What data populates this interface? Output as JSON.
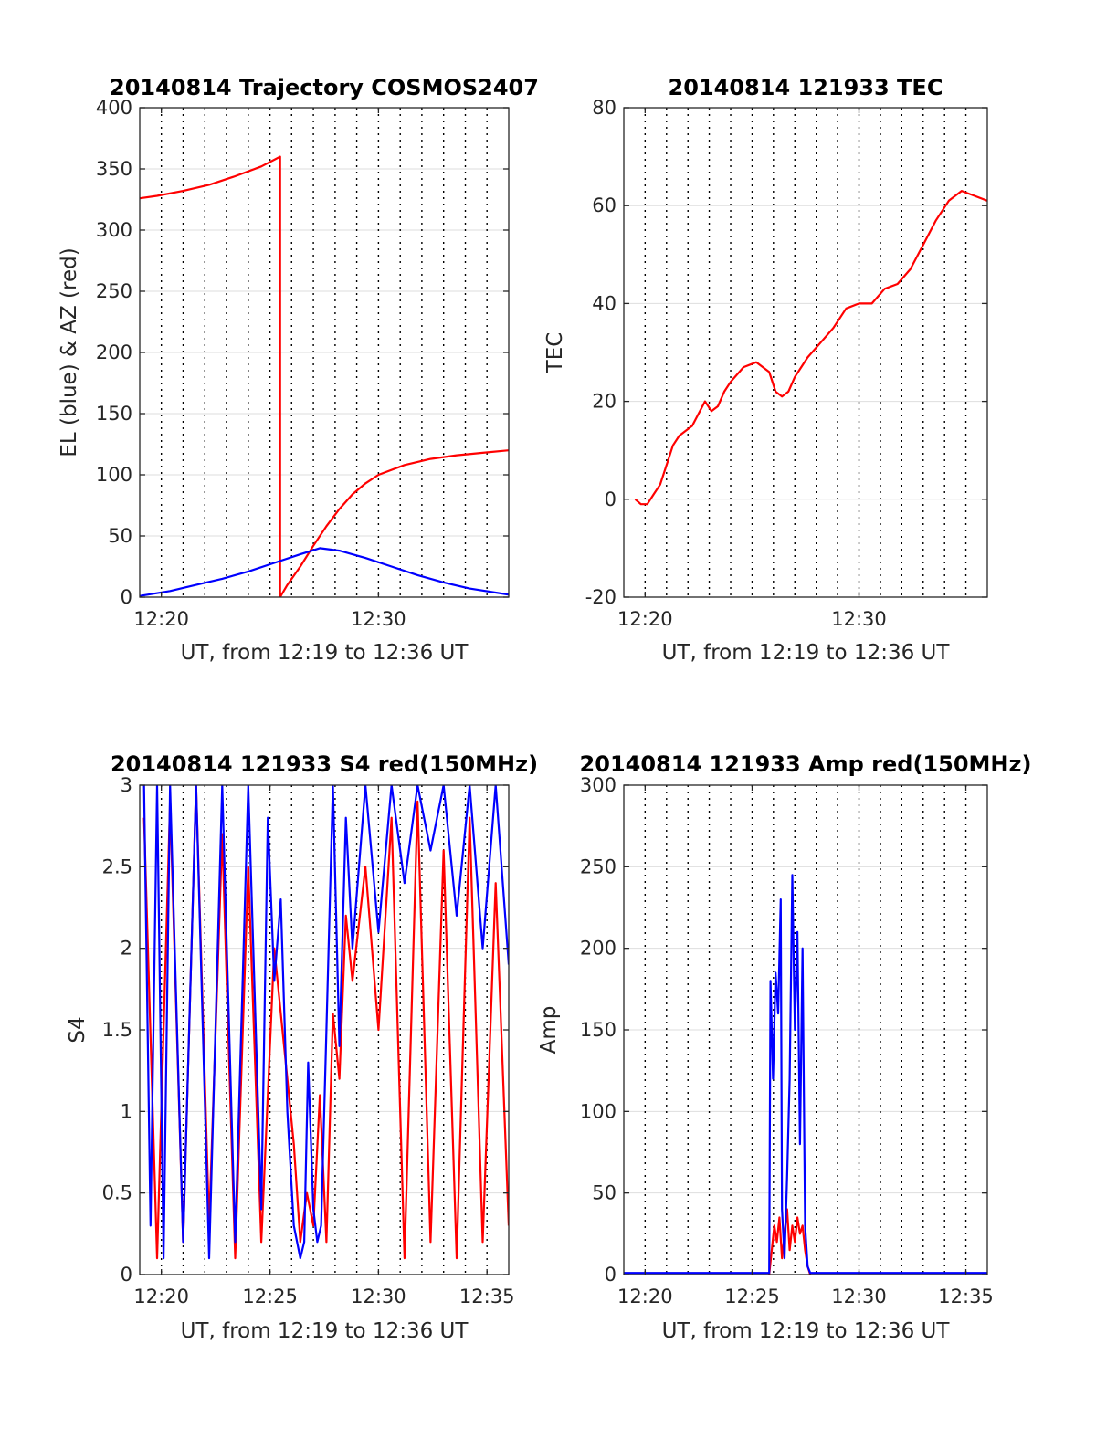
{
  "figure_colors": {
    "background": "#ffffff",
    "axes": "#262626",
    "grid_h": "#dedede",
    "grid_v": "#000000",
    "red": "#ff0000",
    "blue": "#0000ff"
  },
  "chart_data": [
    {
      "id": "traj",
      "type": "line",
      "title": "20140814 Trajectory COSMOS2407",
      "xlabel": "UT, from 12:19 to 12:36 UT",
      "ylabel": "EL (blue) & AZ (red)",
      "xlim": [
        12.3167,
        12.6
      ],
      "ylim": [
        0,
        400
      ],
      "xticks": [
        12.3333,
        12.5
      ],
      "xtick_labels": [
        "12:20",
        "12:30"
      ],
      "yticks": [
        0,
        50,
        100,
        150,
        200,
        250,
        300,
        350,
        400
      ],
      "ytick_labels": [
        "0",
        "50",
        "100",
        "150",
        "200",
        "250",
        "300",
        "350",
        "400"
      ],
      "vgrid_minutes": [
        12.3333,
        12.35,
        12.3667,
        12.3833,
        12.4,
        12.4167,
        12.4333,
        12.45,
        12.4667,
        12.4833,
        12.5,
        12.5167,
        12.5333,
        12.55,
        12.5667,
        12.5833
      ],
      "series": [
        {
          "color": "#ff0000",
          "x": [
            12.3167,
            12.33,
            12.35,
            12.37,
            12.39,
            12.41,
            12.4245,
            12.4245,
            12.4245,
            12.43,
            12.44,
            12.45,
            12.46,
            12.47,
            12.48,
            12.49,
            12.5,
            12.52,
            12.54,
            12.56,
            12.58,
            12.6
          ],
          "values": [
            326,
            328,
            332,
            337,
            344,
            352,
            360,
            200,
            0,
            10,
            25,
            42,
            58,
            72,
            84,
            93,
            100,
            108,
            113,
            116,
            118,
            120
          ]
        },
        {
          "color": "#0000ff",
          "x": [
            12.3167,
            12.34,
            12.36,
            12.38,
            12.4,
            12.42,
            12.44,
            12.455,
            12.47,
            12.49,
            12.51,
            12.53,
            12.55,
            12.57,
            12.6
          ],
          "values": [
            1,
            5,
            10,
            15,
            21,
            28,
            35,
            40,
            38,
            32,
            25,
            18,
            12,
            7,
            2
          ]
        }
      ]
    },
    {
      "id": "tec",
      "type": "line",
      "title": "20140814 121933 TEC",
      "xlabel": "UT, from 12:19 to 12:36 UT",
      "ylabel": "TEC",
      "xlim": [
        12.3167,
        12.6
      ],
      "ylim": [
        -20,
        80
      ],
      "xticks": [
        12.3333,
        12.5
      ],
      "xtick_labels": [
        "12:20",
        "12:30"
      ],
      "yticks": [
        -20,
        0,
        20,
        40,
        60,
        80
      ],
      "ytick_labels": [
        "-20",
        "0",
        "20",
        "40",
        "60",
        "80"
      ],
      "vgrid_minutes": [
        12.3333,
        12.35,
        12.3667,
        12.3833,
        12.4,
        12.4167,
        12.4333,
        12.45,
        12.4667,
        12.4833,
        12.5,
        12.5167,
        12.5333,
        12.55,
        12.5667,
        12.5833
      ],
      "series": [
        {
          "color": "#ff0000",
          "x": [
            12.3256,
            12.33,
            12.335,
            12.34,
            12.345,
            12.35,
            12.355,
            12.36,
            12.37,
            12.38,
            12.385,
            12.39,
            12.395,
            12.4,
            12.41,
            12.42,
            12.43,
            12.435,
            12.44,
            12.445,
            12.45,
            12.455,
            12.46,
            12.47,
            12.48,
            12.49,
            12.5,
            12.51,
            12.52,
            12.53,
            12.54,
            12.55,
            12.56,
            12.57,
            12.58,
            12.59,
            12.6
          ],
          "values": [
            0,
            -1,
            -1,
            1,
            3,
            7,
            11,
            13,
            15,
            20,
            18,
            19,
            22,
            24,
            27,
            28,
            26,
            22,
            21,
            22,
            25,
            27,
            29,
            32,
            35,
            39,
            40,
            40,
            43,
            44,
            47,
            52,
            57,
            61,
            63,
            62,
            61
          ]
        }
      ]
    },
    {
      "id": "s4",
      "type": "line",
      "title": "20140814 121933 S4 red(150MHz)",
      "xlabel": "UT, from 12:19 to 12:36 UT",
      "ylabel": "S4",
      "xlim": [
        12.3167,
        12.6
      ],
      "ylim": [
        0,
        3
      ],
      "xticks": [
        12.3333,
        12.4167,
        12.5,
        12.5833
      ],
      "xtick_labels": [
        "12:20",
        "12:25",
        "12:30",
        "12:35"
      ],
      "yticks": [
        0,
        0.5,
        1,
        1.5,
        2,
        2.5,
        3
      ],
      "ytick_labels": [
        "0",
        "0.5",
        "1",
        "1.5",
        "2",
        "2.5",
        "3"
      ],
      "vgrid_minutes": [
        12.3333,
        12.35,
        12.3667,
        12.3833,
        12.4,
        12.4167,
        12.4333,
        12.45,
        12.4667,
        12.4833,
        12.5,
        12.5167,
        12.5333,
        12.55,
        12.5667,
        12.5833
      ],
      "series": [
        {
          "color": "#ff0000",
          "x": [
            12.32,
            12.33,
            12.34,
            12.35,
            12.36,
            12.37,
            12.38,
            12.39,
            12.4,
            12.41,
            12.42,
            12.43,
            12.435,
            12.44,
            12.445,
            12.45,
            12.455,
            12.46,
            12.465,
            12.47,
            12.475,
            12.48,
            12.49,
            12.5,
            12.51,
            12.52,
            12.53,
            12.54,
            12.55,
            12.56,
            12.57,
            12.58,
            12.59,
            12.6
          ],
          "values": [
            2.8,
            0.1,
            2.9,
            0.2,
            3.0,
            0.3,
            2.7,
            0.1,
            2.5,
            0.2,
            2.0,
            1.2,
            0.8,
            0.2,
            0.5,
            0.3,
            1.1,
            0.2,
            1.6,
            1.2,
            2.2,
            1.8,
            2.5,
            1.5,
            2.8,
            0.1,
            2.9,
            0.2,
            2.6,
            0.1,
            2.8,
            0.2,
            2.4,
            0.3
          ]
        },
        {
          "color": "#0000ff",
          "x": [
            12.32,
            12.325,
            12.33,
            12.335,
            12.34,
            12.35,
            12.36,
            12.37,
            12.38,
            12.39,
            12.4,
            12.41,
            12.415,
            12.42,
            12.425,
            12.43,
            12.435,
            12.44,
            12.443,
            12.446,
            12.45,
            12.453,
            12.456,
            12.46,
            12.465,
            12.47,
            12.475,
            12.48,
            12.49,
            12.5,
            12.51,
            12.52,
            12.53,
            12.54,
            12.55,
            12.56,
            12.57,
            12.58,
            12.59,
            12.6
          ],
          "values": [
            3.0,
            0.3,
            3.0,
            0.1,
            3.0,
            0.2,
            3.0,
            0.1,
            3.0,
            0.2,
            3.0,
            0.4,
            2.8,
            1.8,
            2.3,
            1.0,
            0.3,
            0.1,
            0.2,
            1.3,
            0.4,
            0.2,
            0.3,
            1.5,
            3.0,
            1.4,
            2.8,
            2.0,
            3.0,
            2.1,
            3.0,
            2.4,
            3.0,
            2.6,
            3.0,
            2.2,
            3.0,
            2.0,
            3.0,
            1.9
          ]
        }
      ]
    },
    {
      "id": "amp",
      "type": "line",
      "title": "20140814 121933 Amp red(150MHz)",
      "xlabel": "UT, from 12:19 to 12:36 UT",
      "ylabel": "Amp",
      "xlim": [
        12.3167,
        12.6
      ],
      "ylim": [
        0,
        300
      ],
      "xticks": [
        12.3333,
        12.4167,
        12.5,
        12.5833
      ],
      "xtick_labels": [
        "12:20",
        "12:25",
        "12:30",
        "12:35"
      ],
      "yticks": [
        0,
        50,
        100,
        150,
        200,
        250,
        300
      ],
      "ytick_labels": [
        "0",
        "50",
        "100",
        "150",
        "200",
        "250",
        "300"
      ],
      "vgrid_minutes": [
        12.3333,
        12.35,
        12.3667,
        12.3833,
        12.4,
        12.4167,
        12.4333,
        12.45,
        12.4667,
        12.4833,
        12.5,
        12.5167,
        12.5333,
        12.55,
        12.5667,
        12.5833
      ],
      "series": [
        {
          "color": "#ff0000",
          "x": [
            12.43,
            12.432,
            12.434,
            12.436,
            12.438,
            12.44,
            12.442,
            12.444,
            12.446,
            12.448,
            12.45,
            12.452,
            12.454,
            12.456,
            12.458,
            12.46,
            12.462
          ],
          "values": [
            0,
            15,
            30,
            20,
            35,
            10,
            25,
            40,
            15,
            30,
            20,
            35,
            25,
            30,
            15,
            5,
            0
          ]
        },
        {
          "color": "#0000ff",
          "x": [
            12.3167,
            12.33,
            12.43,
            12.431,
            12.433,
            12.435,
            12.437,
            12.439,
            12.44,
            12.442,
            12.444,
            12.446,
            12.448,
            12.45,
            12.452,
            12.454,
            12.456,
            12.458,
            12.46,
            12.462,
            12.47,
            12.6
          ],
          "values": [
            1,
            1,
            1,
            180,
            120,
            185,
            160,
            230,
            40,
            10,
            60,
            120,
            245,
            150,
            210,
            80,
            200,
            30,
            5,
            1,
            1,
            1
          ]
        }
      ]
    }
  ]
}
